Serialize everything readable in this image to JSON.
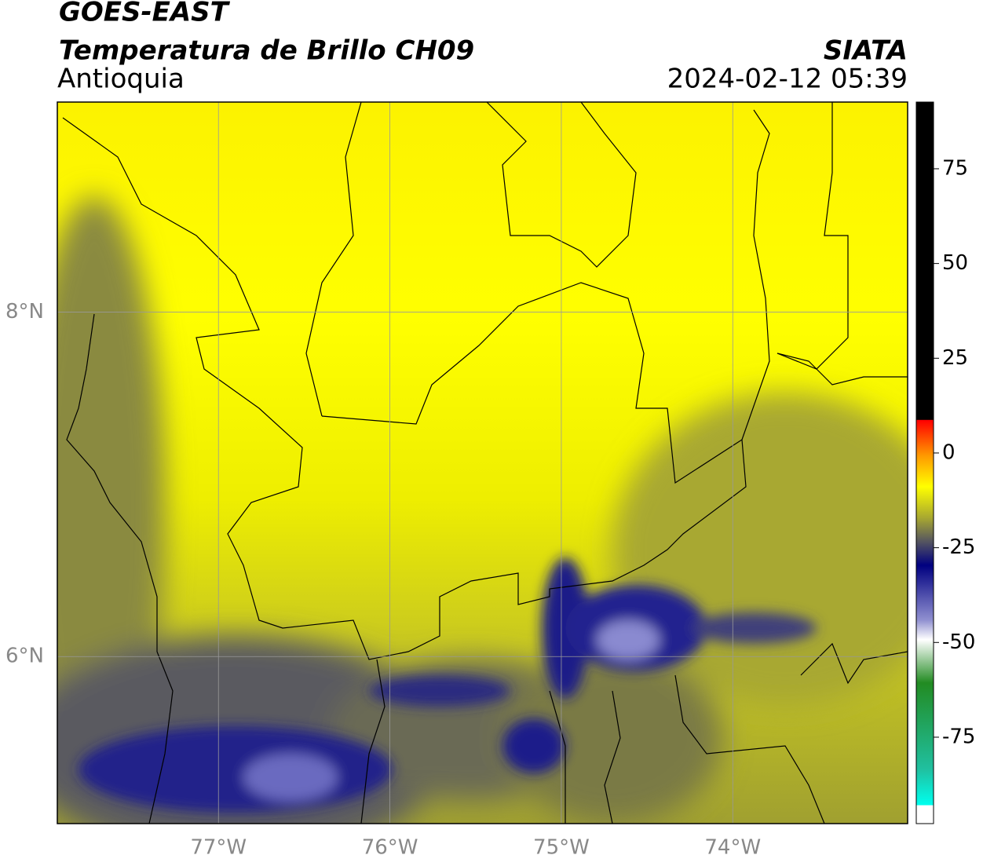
{
  "header": {
    "title": "GOES-EAST",
    "subtitle": "Temperatura de Brillo CH09",
    "region": "Antioquia",
    "source": "SIATA",
    "timestamp": "2024-02-12 05:39"
  },
  "map": {
    "xlim": [
      -77.94,
      -72.98
    ],
    "ylim": [
      5.03,
      9.22
    ],
    "xticks": [
      {
        "value": -77,
        "label": "77°W"
      },
      {
        "value": -76,
        "label": "76°W"
      },
      {
        "value": -75,
        "label": "75°W"
      },
      {
        "value": -74,
        "label": "74°W"
      }
    ],
    "yticks": [
      {
        "value": 8,
        "label": "8°N"
      },
      {
        "value": 6,
        "label": "6°N"
      }
    ]
  },
  "colorbar": {
    "lim": [
      -97.8,
      92.6
    ],
    "ticks": [
      75,
      50,
      25,
      0,
      -25,
      -50,
      -75
    ]
  }
}
